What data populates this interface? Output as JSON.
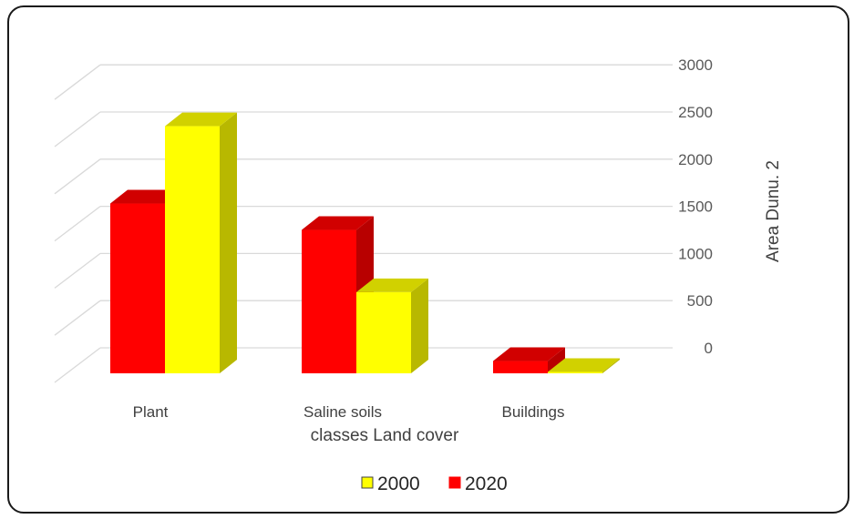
{
  "chart_data": {
    "type": "bar",
    "categories": [
      "Plant",
      "Saline soils",
      "Buildings"
    ],
    "series": [
      {
        "name": "2020",
        "values": [
          1800,
          1520,
          130
        ],
        "color": "#ff0000"
      },
      {
        "name": "2000",
        "values": [
          2620,
          860,
          15
        ],
        "color": "#ffff00"
      }
    ],
    "legend_order": [
      "2000",
      "2020"
    ],
    "xlabel": "classes Land cover",
    "ylabel": "Area Dunu. 2",
    "ylim": [
      0,
      3000
    ],
    "yticks": [
      0,
      500,
      1000,
      1500,
      2000,
      2500,
      3000
    ],
    "y_axis_side": "right",
    "grid": true,
    "legend_position": "bottom",
    "style": "3d-column"
  }
}
